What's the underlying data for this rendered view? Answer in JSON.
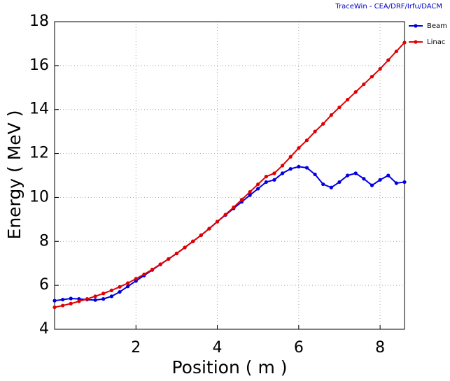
{
  "header": "TraceWin - CEA/DRF/Irfu/DACM",
  "chart_data": {
    "type": "line",
    "xlabel": "Position ( m )",
    "ylabel": "Energy ( MeV )",
    "x": [
      0,
      0.2,
      0.4,
      0.6,
      0.8,
      1.0,
      1.2,
      1.4,
      1.6,
      1.8,
      2.0,
      2.2,
      2.4,
      2.6,
      2.8,
      3.0,
      3.2,
      3.4,
      3.6,
      3.8,
      4.0,
      4.2,
      4.4,
      4.6,
      4.8,
      5.0,
      5.2,
      5.4,
      5.6,
      5.8,
      6.0,
      6.2,
      6.4,
      6.6,
      6.8,
      7.0,
      7.2,
      7.4,
      7.6,
      7.8,
      8.0,
      8.2,
      8.4,
      8.6
    ],
    "series": [
      {
        "name": "Beam",
        "color": "#0000e0",
        "values": [
          5.3,
          5.35,
          5.4,
          5.38,
          5.35,
          5.33,
          5.38,
          5.5,
          5.7,
          5.95,
          6.2,
          6.45,
          6.7,
          6.95,
          7.2,
          7.45,
          7.72,
          8.0,
          8.28,
          8.58,
          8.9,
          9.2,
          9.5,
          9.8,
          10.1,
          10.4,
          10.7,
          10.8,
          11.1,
          11.3,
          11.4,
          11.35,
          11.05,
          10.6,
          10.45,
          10.7,
          11.0,
          11.1,
          10.85,
          10.55,
          10.8,
          11.0,
          10.65,
          10.7
        ]
      },
      {
        "name": "Linac",
        "color": "#e00000",
        "values": [
          5.0,
          5.08,
          5.17,
          5.27,
          5.38,
          5.5,
          5.63,
          5.77,
          5.93,
          6.1,
          6.3,
          6.5,
          6.72,
          6.96,
          7.2,
          7.45,
          7.72,
          8.0,
          8.28,
          8.58,
          8.9,
          9.22,
          9.55,
          9.9,
          10.25,
          10.6,
          10.95,
          11.1,
          11.45,
          11.85,
          12.25,
          12.6,
          13.0,
          13.35,
          13.75,
          14.1,
          14.45,
          14.8,
          15.15,
          15.5,
          15.85,
          16.25,
          16.65,
          17.05
        ]
      }
    ],
    "xlim": [
      0,
      8.6
    ],
    "ylim": [
      4,
      18
    ],
    "xticks": [
      2,
      4,
      6,
      8
    ],
    "yticks": [
      4,
      6,
      8,
      10,
      12,
      14,
      16,
      18
    ],
    "grid": true,
    "legend": "right"
  }
}
